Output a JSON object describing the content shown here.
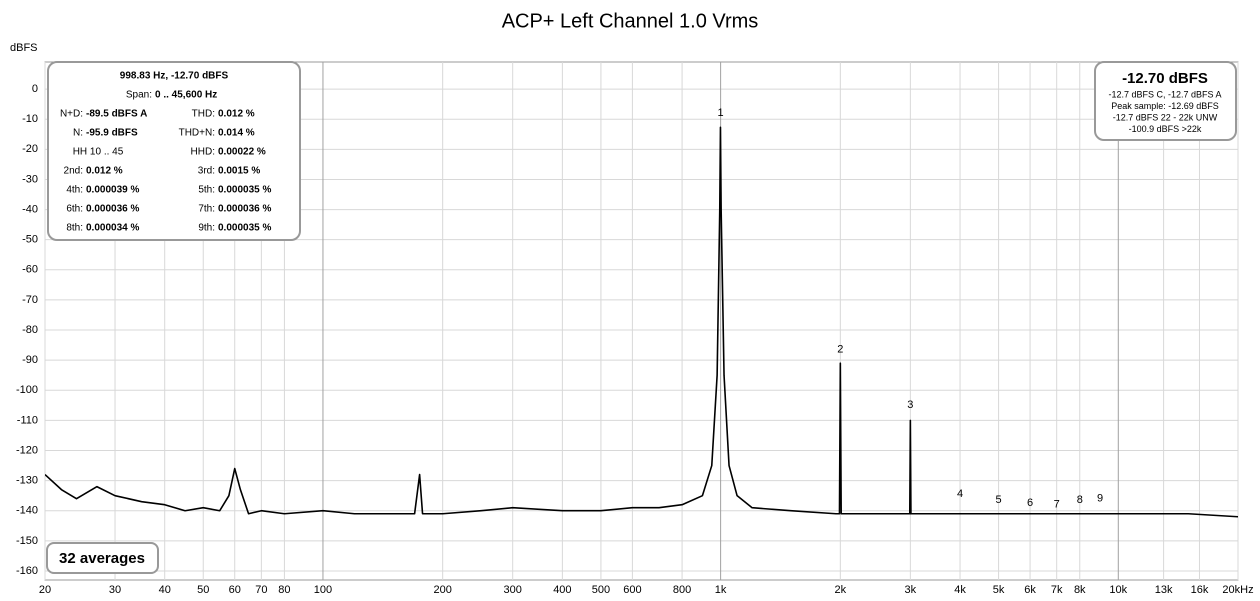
{
  "chart_data": {
    "type": "line",
    "title": "ACP+ Left Channel 1.0 Vrms",
    "y_label": "dBFS",
    "log_x": true,
    "grid": true,
    "color": "#000000",
    "xlim": [
      20,
      20000
    ],
    "ylim": [
      -163,
      9
    ],
    "xticks": [
      20,
      30,
      40,
      50,
      60,
      70,
      80,
      100,
      200,
      300,
      400,
      500,
      600,
      800,
      {
        "value": 1000,
        "label": "1k"
      },
      {
        "value": 2000,
        "label": "2k"
      },
      {
        "value": 3000,
        "label": "3k"
      },
      {
        "value": 4000,
        "label": "4k"
      },
      {
        "value": 5000,
        "label": "5k"
      },
      {
        "value": 6000,
        "label": "6k"
      },
      {
        "value": 7000,
        "label": "7k"
      },
      {
        "value": 8000,
        "label": "8k"
      },
      {
        "value": 10000,
        "label": "10k"
      },
      {
        "value": 13000,
        "label": "13k"
      },
      {
        "value": 16000,
        "label": "16k"
      },
      {
        "value": 20000,
        "label": "20kHz"
      }
    ],
    "yticks": [
      0,
      -10,
      -20,
      -30,
      -40,
      -50,
      -60,
      -70,
      -80,
      -90,
      -100,
      -110,
      -120,
      -130,
      -140,
      -150,
      -160
    ],
    "x": [
      20,
      22,
      24,
      27,
      30,
      35,
      40,
      45,
      50,
      55,
      58,
      60,
      62,
      65,
      70,
      80,
      100,
      120,
      150,
      170,
      175,
      178,
      200,
      250,
      300,
      400,
      500,
      600,
      700,
      800,
      900,
      950,
      980,
      995,
      999,
      1003,
      1020,
      1050,
      1100,
      1200,
      1500,
      1950,
      1990,
      2000,
      2010,
      2500,
      2990,
      3000,
      3010,
      4000,
      6000,
      10000,
      15000,
      20000
    ],
    "values": [
      -128,
      -133,
      -136,
      -132,
      -135,
      -137,
      -138,
      -140,
      -139,
      -140,
      -135,
      -126,
      -133,
      -141,
      -140,
      -141,
      -140,
      -141,
      -141,
      -141,
      -128,
      -141,
      -141,
      -140,
      -139,
      -140,
      -140,
      -139,
      -139,
      -138,
      -135,
      -125,
      -95,
      -40,
      -12.7,
      -40,
      -95,
      -125,
      -135,
      -139,
      -140,
      -141,
      -141,
      -91,
      -141,
      -141,
      -141,
      -110,
      -141,
      -141,
      -141,
      -141,
      -141,
      -142
    ],
    "annotations": [
      {
        "text": "1",
        "x": 1000,
        "y": -8
      },
      {
        "text": "2",
        "x": 2000,
        "y": -86.5
      },
      {
        "text": "3",
        "x": 3000,
        "y": -105
      },
      {
        "text": "4",
        "x": 4000,
        "y": -134.5
      },
      {
        "text": "5",
        "x": 5000,
        "y": -136.5
      },
      {
        "text": "6",
        "x": 6000,
        "y": -137.5
      },
      {
        "text": "7",
        "x": 7000,
        "y": -138
      },
      {
        "text": "8",
        "x": 8000,
        "y": -136.5
      },
      {
        "text": "9",
        "x": 9000,
        "y": -136
      }
    ],
    "measurement_box": {
      "header": "998.83 Hz, -12.70 dBFS",
      "span_label": "Span:",
      "span_value": "0 .. 45,600 Hz",
      "rows": [
        [
          {
            "label": "N+D:",
            "value": "-89.5 dBFS A"
          },
          {
            "label": "THD:",
            "value": "0.012 %"
          }
        ],
        [
          {
            "label": "N:",
            "value": "-95.9 dBFS"
          },
          {
            "label": "THD+N:",
            "value": "0.014 %"
          }
        ],
        [
          {
            "label": "HH 10 .. 45"
          },
          {
            "label": "HHD:",
            "value": "0.00022 %"
          }
        ],
        [
          {
            "label": "2nd:",
            "value": "0.012 %"
          },
          {
            "label": "3rd:",
            "value": "0.0015 %"
          }
        ],
        [
          {
            "label": "4th:",
            "value": "0.000039 %"
          },
          {
            "label": "5th:",
            "value": "0.000035 %"
          }
        ],
        [
          {
            "label": "6th:",
            "value": "0.000036 %"
          },
          {
            "label": "7th:",
            "value": "0.000036 %"
          }
        ],
        [
          {
            "label": "8th:",
            "value": "0.000034 %"
          },
          {
            "label": "9th:",
            "value": "0.000035 %"
          }
        ]
      ]
    },
    "level_box": {
      "title": "-12.70 dBFS",
      "lines": [
        "-12.7 dBFS C, -12.7 dBFS A",
        "Peak sample: -12.69 dBFS",
        "-12.7 dBFS 22 - 22k UNW",
        "-100.9 dBFS >22k"
      ]
    },
    "averages": "32 averages"
  }
}
